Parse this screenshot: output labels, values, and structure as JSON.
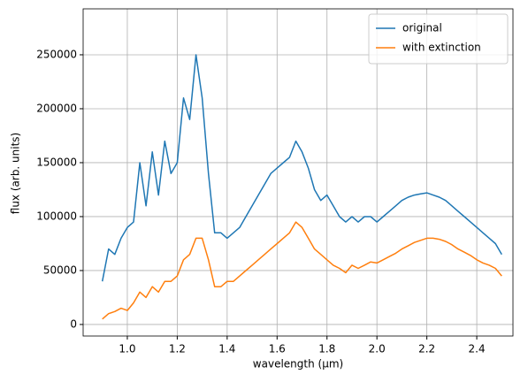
{
  "chart_data": {
    "type": "line",
    "xlabel": "wavelength (µm)",
    "ylabel": "flux (arb. units)",
    "x": [
      0.9,
      0.925,
      0.95,
      0.975,
      1.0,
      1.025,
      1.05,
      1.075,
      1.1,
      1.125,
      1.15,
      1.175,
      1.2,
      1.225,
      1.25,
      1.275,
      1.3,
      1.325,
      1.35,
      1.375,
      1.4,
      1.425,
      1.45,
      1.475,
      1.5,
      1.525,
      1.55,
      1.575,
      1.6,
      1.625,
      1.65,
      1.675,
      1.7,
      1.725,
      1.75,
      1.775,
      1.8,
      1.825,
      1.85,
      1.875,
      1.9,
      1.925,
      1.95,
      1.975,
      2.0,
      2.025,
      2.05,
      2.075,
      2.1,
      2.125,
      2.15,
      2.175,
      2.2,
      2.225,
      2.25,
      2.275,
      2.3,
      2.325,
      2.35,
      2.375,
      2.4,
      2.425,
      2.45,
      2.475,
      2.5
    ],
    "series": [
      {
        "name": "original",
        "color": "#1f77b4",
        "values": [
          40000,
          70000,
          65000,
          80000,
          90000,
          95000,
          150000,
          110000,
          160000,
          120000,
          170000,
          140000,
          150000,
          210000,
          190000,
          250000,
          210000,
          140000,
          85000,
          85000,
          80000,
          85000,
          90000,
          100000,
          110000,
          120000,
          130000,
          140000,
          145000,
          150000,
          155000,
          170000,
          160000,
          145000,
          125000,
          115000,
          120000,
          110000,
          100000,
          95000,
          100000,
          95000,
          100000,
          100000,
          95000,
          100000,
          105000,
          110000,
          115000,
          118000,
          120000,
          121000,
          122000,
          120000,
          118000,
          115000,
          110000,
          105000,
          100000,
          95000,
          90000,
          85000,
          80000,
          75000,
          65000
        ]
      },
      {
        "name": "with extinction",
        "color": "#ff7f0e",
        "values": [
          5000,
          10000,
          12000,
          15000,
          13000,
          20000,
          30000,
          25000,
          35000,
          30000,
          40000,
          40000,
          45000,
          60000,
          65000,
          80000,
          80000,
          60000,
          35000,
          35000,
          40000,
          40000,
          45000,
          50000,
          55000,
          60000,
          65000,
          70000,
          75000,
          80000,
          85000,
          95000,
          90000,
          80000,
          70000,
          65000,
          60000,
          55000,
          52000,
          48000,
          55000,
          52000,
          55000,
          58000,
          57000,
          60000,
          63000,
          66000,
          70000,
          73000,
          76000,
          78000,
          80000,
          80000,
          79000,
          77000,
          74000,
          70000,
          67000,
          64000,
          60000,
          57000,
          55000,
          52000,
          45000
        ]
      }
    ],
    "xlim": [
      0.823,
      2.545
    ],
    "xticks": [
      {
        "value": 1.0,
        "label": "1.0"
      },
      1.2,
      1.4,
      1.6,
      1.8,
      {
        "value": 2.0,
        "label": "2.0"
      },
      2.2,
      2.4
    ],
    "ylim": [
      -10700,
      292600
    ],
    "yticks": [
      0,
      50000,
      100000,
      150000,
      200000,
      250000
    ],
    "grid": true,
    "legend": "upper right"
  }
}
